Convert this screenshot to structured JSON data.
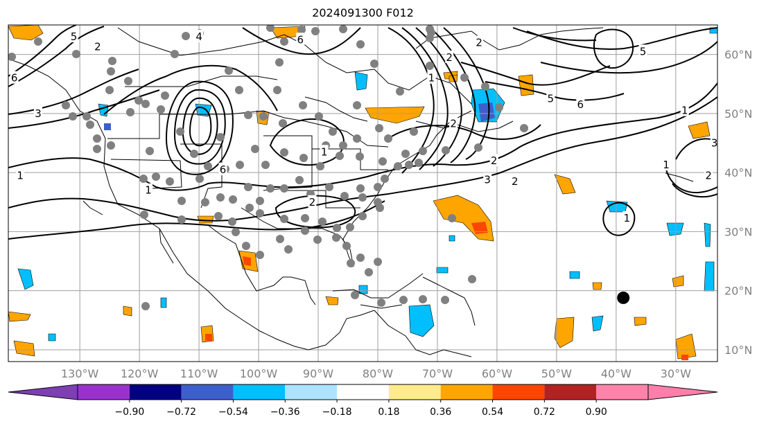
{
  "title": "2024091300 F012",
  "map": {
    "projection": "plate-carree",
    "lon_range": [
      -142,
      -23
    ],
    "lat_range": [
      8,
      65
    ],
    "lon_ticks": [
      {
        "lon": -130,
        "label": "130°W"
      },
      {
        "lon": -120,
        "label": "120°W"
      },
      {
        "lon": -110,
        "label": "110°W"
      },
      {
        "lon": -100,
        "label": "100°W"
      },
      {
        "lon": -90,
        "label": "90°W"
      },
      {
        "lon": -80,
        "label": "80°W"
      },
      {
        "lon": -70,
        "label": "70°W"
      },
      {
        "lon": -60,
        "label": "60°W"
      },
      {
        "lon": -50,
        "label": "50°W"
      },
      {
        "lon": -40,
        "label": "40°W"
      },
      {
        "lon": -30,
        "label": "30°W"
      }
    ],
    "lat_ticks": [
      {
        "lat": 60,
        "label": "60°N"
      },
      {
        "lat": 50,
        "label": "50°N"
      },
      {
        "lat": 40,
        "label": "40°N"
      },
      {
        "lat": 30,
        "label": "30°N"
      },
      {
        "lat": 20,
        "label": "20°N"
      },
      {
        "lat": 10,
        "label": "10°N"
      }
    ],
    "storm_marker": {
      "lon": -38.8,
      "lat": 18.8
    },
    "contour_labels": [
      {
        "text": "1",
        "lon": -140,
        "lat": 39.5
      },
      {
        "text": "1",
        "lon": -118.5,
        "lat": 37
      },
      {
        "text": "2",
        "lon": -127,
        "lat": 61.3
      },
      {
        "text": "3",
        "lon": -137,
        "lat": 50
      },
      {
        "text": "6",
        "lon": -141,
        "lat": 56
      },
      {
        "text": "5",
        "lon": -131,
        "lat": 63
      },
      {
        "text": "4",
        "lon": -110,
        "lat": 63
      },
      {
        "text": "6",
        "lon": -106,
        "lat": 40.5
      },
      {
        "text": "6",
        "lon": -93,
        "lat": 62.5
      },
      {
        "text": "1",
        "lon": -89,
        "lat": 43.5
      },
      {
        "text": "2",
        "lon": -91,
        "lat": 35
      },
      {
        "text": "2",
        "lon": -68,
        "lat": 59.5
      },
      {
        "text": "2",
        "lon": -63,
        "lat": 62
      },
      {
        "text": "1",
        "lon": -71,
        "lat": 56
      },
      {
        "text": "2",
        "lon": -67.3,
        "lat": 48.3
      },
      {
        "text": "3",
        "lon": -61.6,
        "lat": 38.8
      },
      {
        "text": "2",
        "lon": -57,
        "lat": 38.5
      },
      {
        "text": "2",
        "lon": -60.5,
        "lat": 42
      },
      {
        "text": "5",
        "lon": -51,
        "lat": 52.5
      },
      {
        "text": "6",
        "lon": -46,
        "lat": 51.5
      },
      {
        "text": "5",
        "lon": -35.5,
        "lat": 60.5
      },
      {
        "text": "1",
        "lon": -28.5,
        "lat": 50.5
      },
      {
        "text": "1",
        "lon": -38.2,
        "lat": 32.3
      },
      {
        "text": "1",
        "lon": -31.6,
        "lat": 41.3
      },
      {
        "text": "2",
        "lon": -24.5,
        "lat": 39.5
      },
      {
        "text": "3",
        "lon": -23.5,
        "lat": 45
      }
    ]
  },
  "colorbar": {
    "colors": [
      "#7d3fb3",
      "#9932CC",
      "#000080",
      "#3D5FCC",
      "#00BFFF",
      "#ADE3FF",
      "#FFFFFF",
      "#FFEB8A",
      "#FFA500",
      "#FF4500",
      "#B22222",
      "#FF82AB",
      "#FF7FAA"
    ],
    "tick_labels": [
      "−0.90",
      "−0.72",
      "−0.54",
      "−0.36",
      "−0.18",
      "0.18",
      "0.36",
      "0.54",
      "0.72",
      "0.90"
    ]
  }
}
